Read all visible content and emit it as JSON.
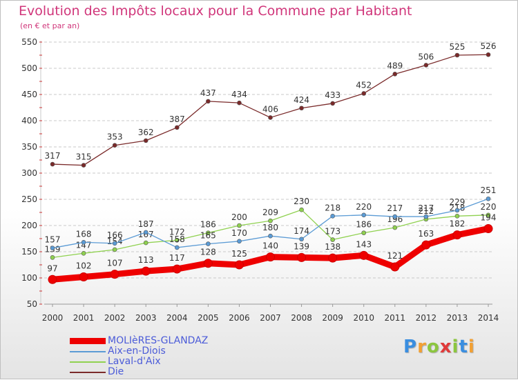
{
  "chart_data": {
    "type": "line",
    "title": "Evolution des Impôts locaux pour la Commune par Habitant",
    "subtitle": "(en € et par an)",
    "xlabel": "",
    "ylabel": "",
    "categories": [
      "2000",
      "2001",
      "2002",
      "2003",
      "2004",
      "2005",
      "2006",
      "2007",
      "2008",
      "2009",
      "2010",
      "2011",
      "2012",
      "2013",
      "2014"
    ],
    "ylim": [
      50,
      550
    ],
    "yticks": [
      50,
      100,
      150,
      200,
      250,
      300,
      350,
      400,
      450,
      500,
      550
    ],
    "grid": true,
    "legend_position": "bottom-left",
    "series": [
      {
        "name": "MOLIèRES-GLANDAZ",
        "color": "#ee0000",
        "values": [
          97,
          102,
          107,
          113,
          117,
          128,
          125,
          140,
          139,
          138,
          143,
          121,
          163,
          182,
          194
        ]
      },
      {
        "name": "Aix-en-Diois",
        "color": "#5b9bd5",
        "values": [
          157,
          168,
          166,
          187,
          158,
          165,
          170,
          180,
          174,
          218,
          220,
          217,
          217,
          229,
          251
        ]
      },
      {
        "name": "Laval-d'Aix",
        "color": "#8fd14f",
        "values": [
          139,
          147,
          154,
          167,
          172,
          186,
          200,
          209,
          230,
          173,
          186,
          196,
          212,
          218,
          220
        ]
      },
      {
        "name": "Die",
        "color": "#7a2a2a",
        "values": [
          317,
          315,
          353,
          362,
          387,
          437,
          434,
          406,
          424,
          433,
          452,
          489,
          506,
          525,
          526
        ]
      }
    ]
  },
  "logo": {
    "letters": [
      "P",
      "r",
      "o",
      "x",
      "i",
      "t",
      "i"
    ],
    "colors": [
      "#3a8ee0",
      "#f2a033",
      "#8cc63f",
      "#e03a3a",
      "#8cc63f",
      "#3a8ee0",
      "#f2a033"
    ]
  }
}
